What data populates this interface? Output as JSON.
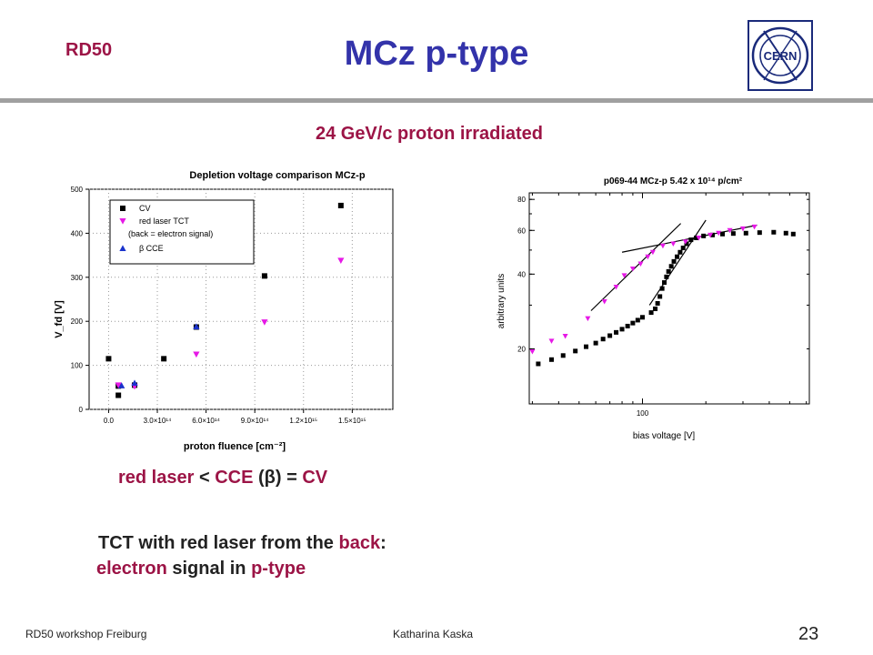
{
  "header": {
    "logo_text": "RD50",
    "title": "MCz p-type",
    "subtitle": "24 GeV/c proton irradiated",
    "cern_logo_text": "CERN"
  },
  "colors": {
    "maroon": "#9c1446",
    "title_blue": "#3333aa",
    "cv": "#000000",
    "laser": "#e619e6",
    "cce": "#1a33cc"
  },
  "notes": {
    "n1": {
      "a": "red laser",
      "b": " < ",
      "c": "CCE",
      "d": " (β) = ",
      "e": "CV"
    },
    "n2": {
      "a": "TCT with red laser from the ",
      "b": "back",
      "c": ":"
    },
    "n3": {
      "a": "electron",
      "b": " signal in ",
      "c": "p-type"
    }
  },
  "footer": {
    "left": "RD50 workshop Freiburg",
    "center": "Katharina Kaska",
    "page": "23"
  },
  "chart_data": [
    {
      "type": "scatter",
      "title": "Depletion voltage comparison MCz-p",
      "xlabel": "proton fluence [cm⁻²]",
      "ylabel": "V_fd [V]",
      "xlim": [
        -120000000000000.0,
        1750000000000000.0
      ],
      "ylim": [
        0,
        500
      ],
      "xticks": [
        "0.0",
        "3.0×10¹⁴",
        "6.0×10¹⁴",
        "9.0×10¹⁴",
        "1.2×10¹⁵",
        "1.5×10¹⁵"
      ],
      "xtick_values": [
        0,
        300000000000000.0,
        600000000000000.0,
        900000000000000.0,
        1200000000000000.0,
        1500000000000000.0
      ],
      "yticks": [
        0,
        100,
        200,
        300,
        400,
        500
      ],
      "legend_position": "top-left",
      "series": [
        {
          "name": "CV",
          "marker": "square",
          "color": "#000000",
          "points": [
            [
              0,
              115
            ],
            [
              60000000000000.0,
              32
            ],
            [
              60000000000000.0,
              53
            ],
            [
              160000000000000.0,
              55
            ],
            [
              340000000000000.0,
              115
            ],
            [
              540000000000000.0,
              187
            ],
            [
              960000000000000.0,
              303
            ],
            [
              1430000000000000.0,
              463
            ]
          ]
        },
        {
          "name": "red laser TCT (back = electron signal)",
          "marker": "triangle-down",
          "color": "#e619e6",
          "points": [
            [
              60000000000000.0,
              55
            ],
            [
              160000000000000.0,
              52
            ],
            [
              540000000000000.0,
              125
            ],
            [
              960000000000000.0,
              198
            ],
            [
              1430000000000000.0,
              338
            ]
          ]
        },
        {
          "name": "β CCE",
          "marker": "triangle-up",
          "color": "#1a33cc",
          "points": [
            [
              80000000000000.0,
              54
            ],
            [
              160000000000000.0,
              60
            ],
            [
              540000000000000.0,
              188
            ]
          ]
        }
      ]
    },
    {
      "type": "scatter",
      "title": "p069-44 MCz-p 5.42 x 10¹⁴ p/cm²",
      "xlabel": "bias voltage [V]",
      "ylabel": "arbitrary units",
      "xscale": "log",
      "yscale": "log",
      "xlim": [
        29,
        620
      ],
      "ylim": [
        12,
        85
      ],
      "xticks": [
        "100"
      ],
      "xtick_values": [
        100
      ],
      "yticks": [
        20,
        40,
        60,
        80
      ],
      "series": [
        {
          "name": "",
          "marker": "square",
          "color": "#000000",
          "points": [
            [
              32,
              17.4
            ],
            [
              37,
              18.1
            ],
            [
              42,
              18.8
            ],
            [
              48,
              19.6
            ],
            [
              54,
              20.4
            ],
            [
              60,
              21.1
            ],
            [
              65,
              21.9
            ],
            [
              70,
              22.6
            ],
            [
              75,
              23.3
            ],
            [
              80,
              24.0
            ],
            [
              85,
              24.7
            ],
            [
              90,
              25.4
            ],
            [
              95,
              26.1
            ],
            [
              100,
              26.8
            ],
            [
              110,
              28
            ],
            [
              115,
              29
            ],
            [
              118,
              30.5
            ],
            [
              121,
              32.5
            ],
            [
              124,
              35
            ],
            [
              127,
              37
            ],
            [
              130,
              39
            ],
            [
              133,
              41
            ],
            [
              137,
              43
            ],
            [
              141,
              45
            ],
            [
              146,
              47
            ],
            [
              151,
              49
            ],
            [
              156,
              51
            ],
            [
              162,
              53
            ],
            [
              170,
              55
            ],
            [
              180,
              56
            ],
            [
              195,
              57
            ],
            [
              215,
              57.5
            ],
            [
              240,
              58
            ],
            [
              270,
              58.3
            ],
            [
              310,
              58.5
            ],
            [
              360,
              58.8
            ],
            [
              420,
              59
            ],
            [
              480,
              58.5
            ],
            [
              520,
              58
            ]
          ]
        },
        {
          "name": "",
          "marker": "triangle-down",
          "color": "#e619e6",
          "points": [
            [
              30,
              19.5
            ],
            [
              37,
              21.5
            ],
            [
              43,
              22.5
            ],
            [
              55,
              26.5
            ],
            [
              66,
              31
            ],
            [
              75,
              35.5
            ],
            [
              82,
              39.5
            ],
            [
              90,
              42
            ],
            [
              98,
              44
            ],
            [
              106,
              47
            ],
            [
              112,
              49
            ],
            [
              125,
              52
            ],
            [
              140,
              53
            ],
            [
              160,
              54
            ],
            [
              185,
              56
            ],
            [
              210,
              57.5
            ],
            [
              230,
              58.5
            ],
            [
              260,
              60
            ],
            [
              300,
              61
            ],
            [
              340,
              62
            ]
          ]
        }
      ],
      "fit_lines": [
        {
          "from": [
            57,
            28.5
          ],
          "to": [
            152,
            64
          ]
        },
        {
          "from": [
            108,
            30
          ],
          "to": [
            200,
            66
          ]
        },
        {
          "from": [
            80,
            49
          ],
          "to": [
            350,
            63
          ]
        }
      ]
    }
  ]
}
